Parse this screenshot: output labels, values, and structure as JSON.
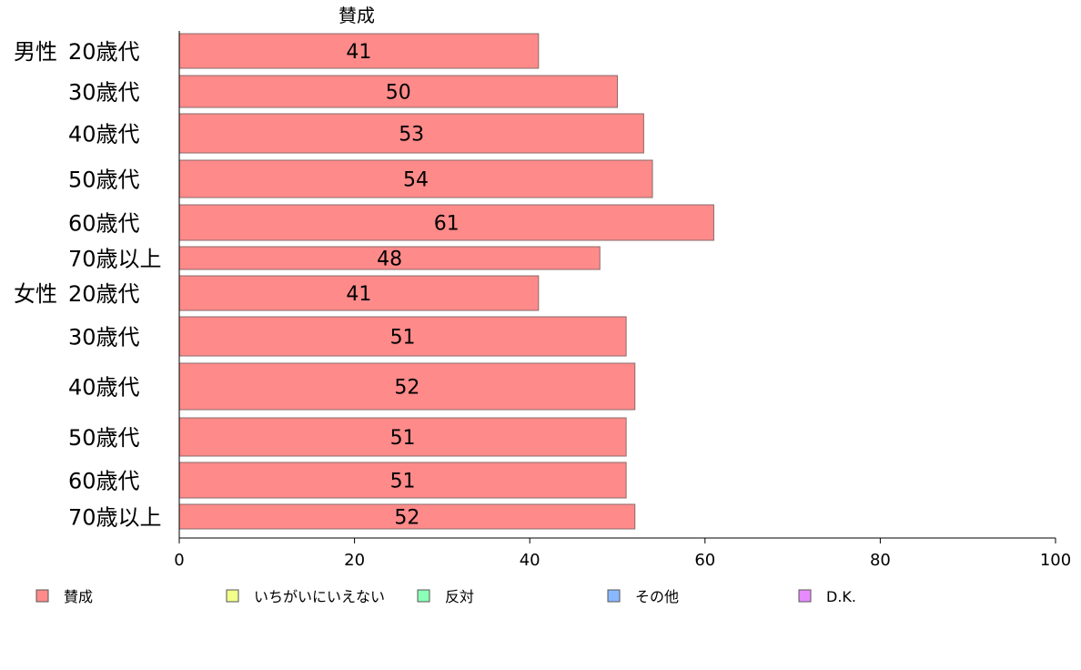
{
  "chart_data": {
    "type": "bar",
    "orientation": "horizontal",
    "stacked": true,
    "column_header": "賛成",
    "groups": [
      {
        "label": "男性",
        "start": 0
      },
      {
        "label": "女性",
        "start": 6
      }
    ],
    "categories": [
      "20歳代",
      "30歳代",
      "40歳代",
      "50歳代",
      "60歳代",
      "70歳以上",
      "20歳代",
      "30歳代",
      "40歳代",
      "50歳代",
      "60歳代",
      "70歳以上"
    ],
    "series": [
      {
        "name": "賛成",
        "color": "#ff8a8a",
        "values": [
          41,
          50,
          53,
          54,
          61,
          48,
          41,
          51,
          52,
          51,
          51,
          52
        ],
        "data_labels": [
          "41",
          "50",
          "53",
          "54",
          "61",
          "48",
          "41",
          "51",
          "52",
          "51",
          "51",
          "52"
        ]
      }
    ],
    "legend": [
      {
        "name": "賛成",
        "color": "#ff8a8a"
      },
      {
        "name": "いちがいにいえない",
        "color": "#f2ff8a"
      },
      {
        "name": "反対",
        "color": "#8affb5"
      },
      {
        "name": "その他",
        "color": "#8ab8ff"
      },
      {
        "name": "D.K.",
        "color": "#e88aff"
      }
    ],
    "legend_position": "bottom",
    "xlim": [
      0,
      100
    ],
    "xticks": [
      0,
      20,
      40,
      60,
      80,
      100
    ],
    "grid": false
  }
}
